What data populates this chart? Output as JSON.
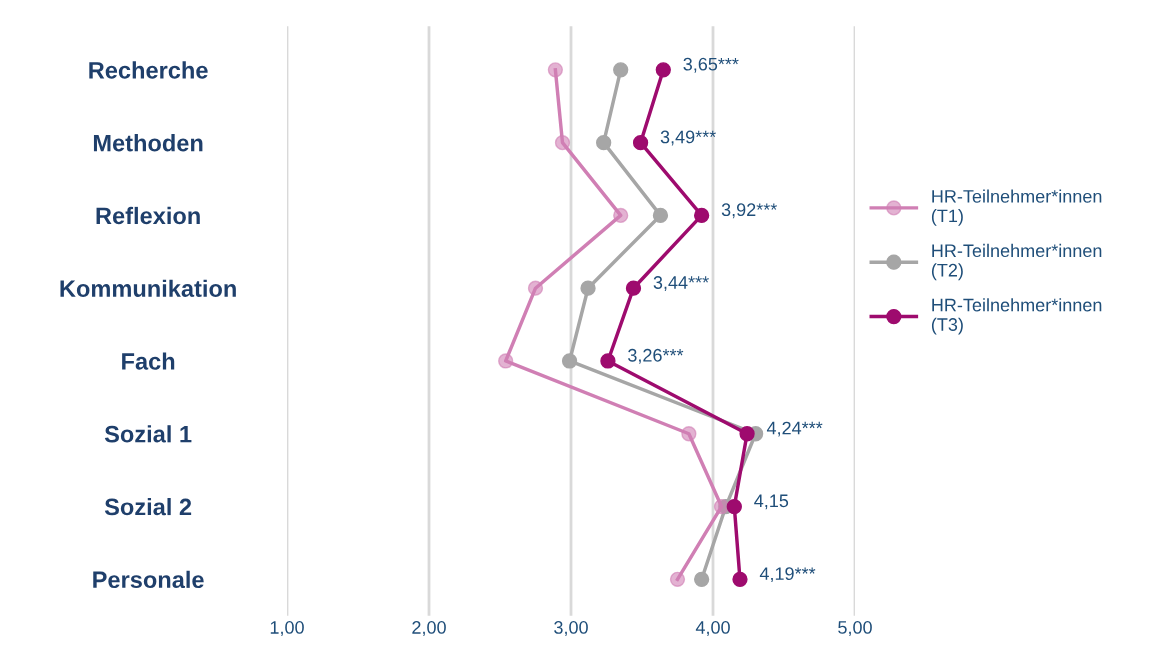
{
  "chart_data": {
    "type": "line",
    "orientation": "horizontal",
    "categories": [
      "Recherche",
      "Methoden",
      "Reflexion",
      "Kommunikation",
      "Fach",
      "Sozial 1",
      "Sozial 2",
      "Personale"
    ],
    "series": [
      {
        "name": "HR-Teilnehmer*innen (T1)",
        "color": "#d07fb4",
        "values": [
          2.89,
          2.94,
          3.35,
          2.75,
          2.54,
          3.83,
          4.06,
          3.75
        ]
      },
      {
        "name": "HR-Teilnehmer*innen (T2)",
        "color": "#a6a6a6",
        "values": [
          3.35,
          3.23,
          3.63,
          3.12,
          2.99,
          4.3,
          4.09,
          3.92
        ]
      },
      {
        "name": "HR-Teilnehmer*innen (T3)",
        "color": "#9e0b6e",
        "values": [
          3.65,
          3.49,
          3.92,
          3.44,
          3.26,
          4.24,
          4.15,
          4.19
        ],
        "value_labels": [
          "3,65***",
          "3,49***",
          "3,92***",
          "3,44***",
          "3,26***",
          "4,24***",
          "4,15",
          "4,19***"
        ]
      }
    ],
    "xlim": [
      1,
      5
    ],
    "xticks": [
      {
        "value": 1,
        "label": "1,00"
      },
      {
        "value": 2,
        "label": "2,00"
      },
      {
        "value": 3,
        "label": "3,00"
      },
      {
        "value": 4,
        "label": "4,00"
      },
      {
        "value": 5,
        "label": "5,00"
      }
    ],
    "grid": "x",
    "legend": "right",
    "marker": "circle",
    "line_style": "solid"
  }
}
